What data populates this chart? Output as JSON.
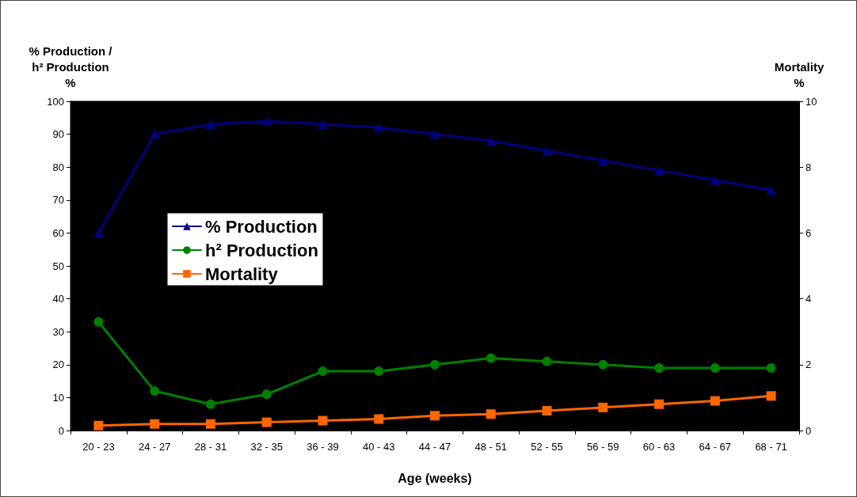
{
  "chart_data": {
    "type": "line",
    "xlabel": "Age (weeks)",
    "ylabel": "% Production /\nh² Production\n%",
    "y2label": "Mortality\n%",
    "categories": [
      "20 - 23",
      "24 - 27",
      "28 - 31",
      "32 - 35",
      "36 - 39",
      "40 - 43",
      "44 - 47",
      "48 - 51",
      "52 - 55",
      "56 - 59",
      "60 - 63",
      "64 - 67",
      "68 - 71"
    ],
    "series": [
      {
        "name": "% Production",
        "color": "#000080",
        "marker": "triangle",
        "values": [
          60,
          90,
          93,
          94,
          93,
          92,
          90,
          88,
          85,
          82,
          79,
          76,
          73
        ]
      },
      {
        "name": "h² Production",
        "color": "#008000",
        "marker": "circle",
        "values": [
          33,
          12,
          8,
          11,
          18,
          18,
          20,
          22,
          21,
          20,
          19,
          19,
          19
        ]
      },
      {
        "name": "Mortality",
        "color": "#ff6600",
        "marker": "square",
        "axis": "y2",
        "values": [
          0.15,
          0.2,
          0.2,
          0.25,
          0.3,
          0.35,
          0.45,
          0.5,
          0.6,
          0.7,
          0.8,
          0.9,
          1.05
        ]
      }
    ],
    "ylim": [
      0,
      100
    ],
    "yticks": [
      0,
      10,
      20,
      30,
      40,
      50,
      60,
      70,
      80,
      90,
      100
    ],
    "y2lim": [
      0,
      10
    ],
    "y2ticks": [
      0,
      2,
      4,
      6,
      8,
      10
    ],
    "grid": false,
    "legend": "left",
    "line_style": "solid"
  }
}
